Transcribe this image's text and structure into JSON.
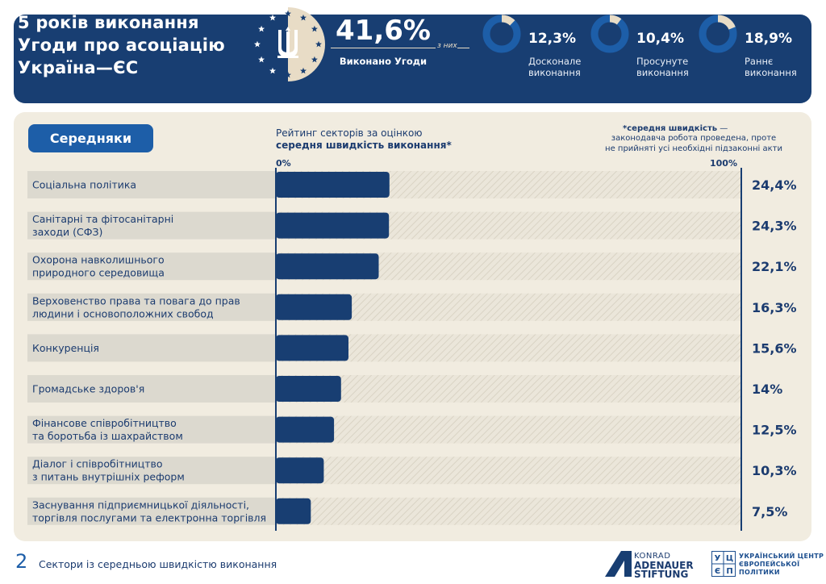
{
  "header": {
    "title_lines": [
      "5 років виконання",
      "Угоди про асоціацію",
      "Україна—ЄС"
    ],
    "main_value": "41,6%",
    "main_label": "Виконано Угоди",
    "of_them": "з них",
    "breakdown": [
      {
        "value": "12,3%",
        "fraction": 0.123,
        "label_lines": [
          "Досконале",
          "виконання"
        ]
      },
      {
        "value": "10,4%",
        "fraction": 0.104,
        "label_lines": [
          "Просунуте",
          "виконання"
        ]
      },
      {
        "value": "18,9%",
        "fraction": 0.189,
        "label_lines": [
          "Раннє",
          "виконання"
        ]
      }
    ]
  },
  "group_label": "Середняки",
  "rating_title": {
    "line1": "Рейтинг секторів за оцінкою",
    "line2": "середня швидкість виконання*"
  },
  "note": {
    "term": "*середня швидкість",
    "dash": " —",
    "desc_lines": [
      "законодавча робота проведена, проте",
      "не прийняті усі необхідні підзаконні акти"
    ]
  },
  "colors": {
    "navy": "#183e72",
    "bar": "#183e72",
    "accent_blue": "#1d5ea8",
    "panel": "#f1ece0",
    "label_bg": "#dcd9cf",
    "cream": "#e8dcc6"
  },
  "chart_data": {
    "type": "bar",
    "orientation": "horizontal",
    "title": "Рейтинг секторів за оцінкою середня швидкість виконання*",
    "xlim": [
      0,
      100
    ],
    "axis_labels": {
      "min": "0%",
      "max": "100%"
    },
    "categories": [
      {
        "lines": [
          "Соціальна політика"
        ]
      },
      {
        "lines": [
          "Санітарні та фітосанітарні",
          "заходи (СФЗ)"
        ]
      },
      {
        "lines": [
          "Охорона навколишнього",
          "природного середовища"
        ]
      },
      {
        "lines": [
          "Верховенство права та повага до прав",
          "людини і основоположних свобод"
        ]
      },
      {
        "lines": [
          "Конкуренція"
        ]
      },
      {
        "lines": [
          "Громадське здоров'я"
        ]
      },
      {
        "lines": [
          "Фінансове співробітництво",
          "та боротьба із шахрайством"
        ]
      },
      {
        "lines": [
          "Діалог і співробітництво",
          "з питань внутрішніх реформ"
        ]
      },
      {
        "lines": [
          "Заснування підприємницької діяльності,",
          "торгівля послугами та електронна торгівля"
        ]
      }
    ],
    "values": [
      24.4,
      24.3,
      22.1,
      16.3,
      15.6,
      14,
      12.5,
      10.3,
      7.5
    ],
    "value_labels": [
      "24,4%",
      "24,3%",
      "22,1%",
      "16,3%",
      "15,6%",
      "14%",
      "12,5%",
      "10,3%",
      "7,5%"
    ]
  },
  "footer": {
    "page_number": "2",
    "page_title": "Сектори із середньою швидкістю виконання",
    "kas_lines": [
      "KONRAD",
      "ADENAUER",
      "STIFTUNG"
    ],
    "ucep_lines": [
      "УКРАЇНСЬКИЙ ЦЕНТР",
      "ЄВРОПЕЙСЬКОЇ",
      "ПОЛІТИКИ"
    ],
    "ucep_mark": [
      "У",
      "Ц",
      "Є",
      "П"
    ]
  }
}
